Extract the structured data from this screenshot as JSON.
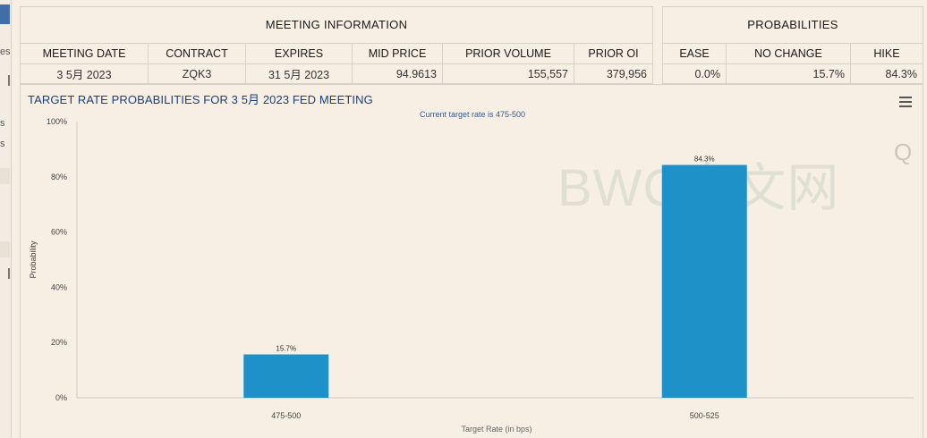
{
  "sidebar": {
    "fragments": [
      "es",
      "s",
      "s"
    ]
  },
  "meeting_info": {
    "title": "MEETING INFORMATION",
    "headers": [
      "MEETING DATE",
      "CONTRACT",
      "EXPIRES",
      "MID PRICE",
      "PRIOR VOLUME",
      "PRIOR OI"
    ],
    "row": [
      "3 5月 2023",
      "ZQK3",
      "31 5月 2023",
      "94.9613",
      "155,557",
      "379,956"
    ]
  },
  "probabilities": {
    "title": "PROBABILITIES",
    "headers": [
      "EASE",
      "NO CHANGE",
      "HIKE"
    ],
    "row": [
      "0.0%",
      "15.7%",
      "84.3%"
    ]
  },
  "chart": {
    "title": "TARGET RATE PROBABILITIES FOR 3 5月 2023 FED MEETING",
    "menu_icon": "hamburger-menu-icon",
    "watermark": "BWC中文网",
    "zoom_glyph": "Q"
  },
  "chart_data": {
    "type": "bar",
    "subtitle": "Current target rate is 475-500",
    "categories": [
      "475-500",
      "500-525"
    ],
    "values": [
      15.7,
      84.3
    ],
    "data_labels": [
      "15.7%",
      "84.3%"
    ],
    "xlabel": "Target Rate (in bps)",
    "ylabel": "Probability",
    "ylim": [
      0,
      100
    ],
    "yticks": [
      "0%",
      "20%",
      "40%",
      "60%",
      "80%",
      "100%"
    ],
    "bar_color": "#1f91c9",
    "grid": false
  }
}
